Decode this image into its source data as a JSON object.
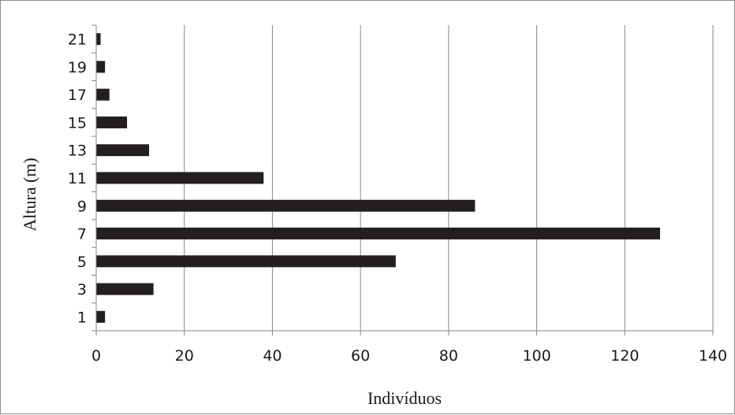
{
  "chart_data": {
    "type": "bar",
    "orientation": "horizontal",
    "title": "",
    "xlabel": "Indivíduos",
    "ylabel": "Altura (m)",
    "xlim": [
      0,
      140
    ],
    "x_ticks": [
      0,
      20,
      40,
      60,
      80,
      100,
      120,
      140
    ],
    "grid": "vertical",
    "legend": "none",
    "bar_color": "#231f20",
    "categories": [
      "1",
      "3",
      "5",
      "7",
      "9",
      "11",
      "13",
      "15",
      "17",
      "19",
      "21"
    ],
    "values": [
      2,
      13,
      68,
      128,
      86,
      38,
      12,
      7,
      3,
      2,
      1
    ]
  }
}
